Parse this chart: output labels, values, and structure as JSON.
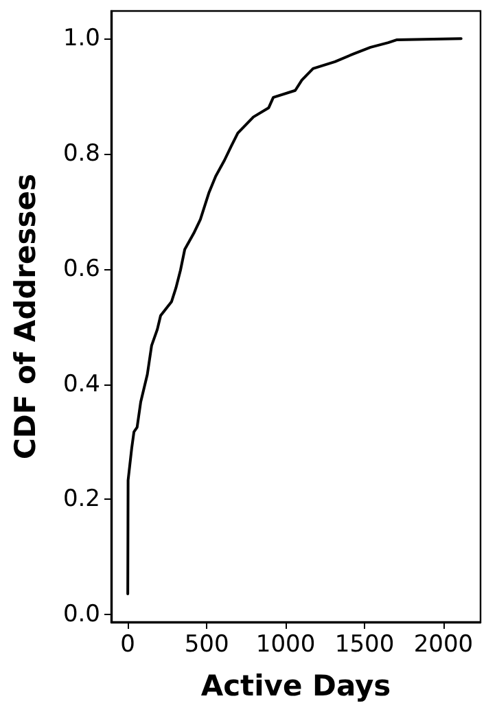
{
  "chart_data": {
    "type": "line",
    "xlabel": "Active Days",
    "ylabel": "CDF of Addresses",
    "xlim": [
      -105,
      2235
    ],
    "ylim": [
      -0.013,
      1.048
    ],
    "xticks": [
      0,
      500,
      1000,
      1500,
      2000
    ],
    "yticks": [
      {
        "value": 0,
        "label": "0.0"
      },
      {
        "value": 0.2,
        "label": "0.2"
      },
      {
        "value": 0.4,
        "label": "0.4"
      },
      {
        "value": 0.6,
        "label": "0.6"
      },
      {
        "value": 0.8,
        "label": "0.8"
      },
      {
        "value": 1,
        "label": "1.0"
      }
    ],
    "grid": false,
    "marker": "none",
    "line_style": "solid",
    "series": [
      {
        "color": "#000000",
        "x": [
          0,
          2,
          25,
          39,
          59,
          82,
          124,
          151,
          187,
          208,
          277,
          305,
          334,
          361,
          418,
          460,
          515,
          557,
          613,
          655,
          697,
          796,
          893,
          922,
          1061,
          1103,
          1174,
          1313,
          1426,
          1538,
          1650,
          1706,
          2112
        ],
        "values": [
          0.036,
          0.233,
          0.289,
          0.317,
          0.325,
          0.369,
          0.417,
          0.467,
          0.495,
          0.519,
          0.543,
          0.567,
          0.598,
          0.634,
          0.662,
          0.686,
          0.733,
          0.761,
          0.789,
          0.813,
          0.836,
          0.864,
          0.88,
          0.898,
          0.91,
          0.928,
          0.948,
          0.96,
          0.973,
          0.985,
          0.993,
          0.998,
          1.0
        ]
      }
    ]
  }
}
